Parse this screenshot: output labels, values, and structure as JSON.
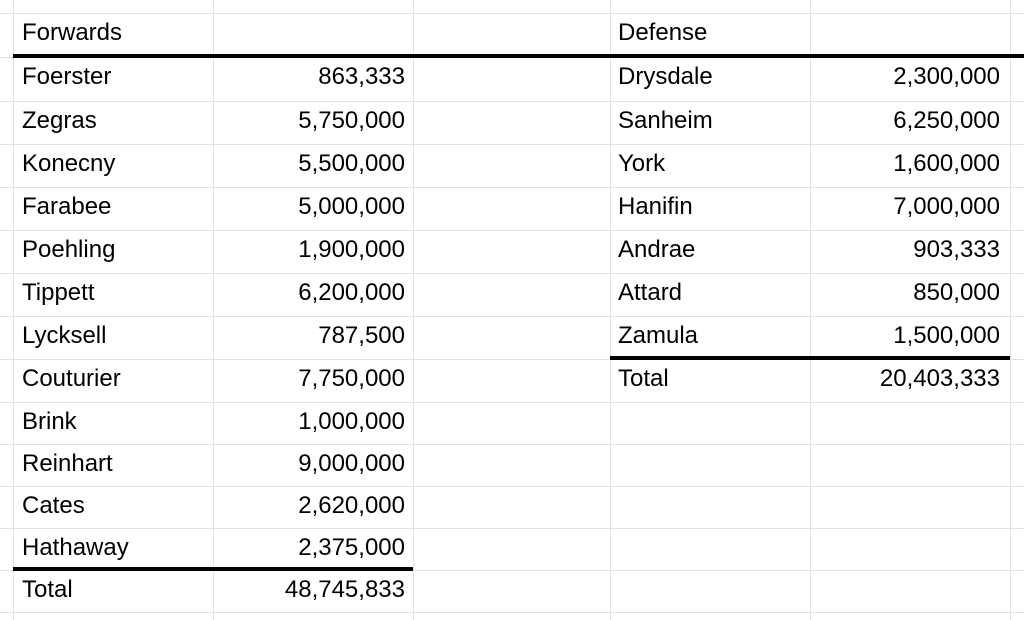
{
  "forwards": {
    "header": "Forwards",
    "rows": [
      {
        "name": "Foerster",
        "value": "863,333"
      },
      {
        "name": "Zegras",
        "value": "5,750,000"
      },
      {
        "name": "Konecny",
        "value": "5,500,000"
      },
      {
        "name": "Farabee",
        "value": "5,000,000"
      },
      {
        "name": "Poehling",
        "value": "1,900,000"
      },
      {
        "name": "Tippett",
        "value": "6,200,000"
      },
      {
        "name": "Lycksell",
        "value": "787,500"
      },
      {
        "name": "Couturier",
        "value": "7,750,000"
      },
      {
        "name": "Brink",
        "value": "1,000,000"
      },
      {
        "name": "Reinhart",
        "value": "9,000,000"
      },
      {
        "name": "Cates",
        "value": "2,620,000"
      },
      {
        "name": "Hathaway",
        "value": "2,375,000"
      }
    ],
    "total_label": "Total",
    "total_value": "48,745,833"
  },
  "defense": {
    "header": "Defense",
    "rows": [
      {
        "name": "Drysdale",
        "value": "2,300,000"
      },
      {
        "name": "Sanheim",
        "value": "6,250,000"
      },
      {
        "name": "York",
        "value": "1,600,000"
      },
      {
        "name": "Hanifin",
        "value": "7,000,000"
      },
      {
        "name": "Andrae",
        "value": "903,333"
      },
      {
        "name": "Attard",
        "value": "850,000"
      },
      {
        "name": "Zamula",
        "value": "1,500,000"
      }
    ],
    "total_label": "Total",
    "total_value": "20,403,333"
  }
}
